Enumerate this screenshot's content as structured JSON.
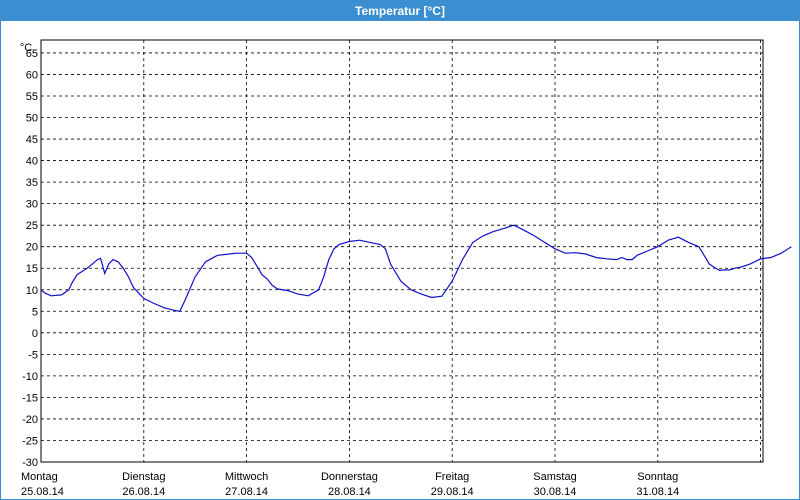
{
  "window": {
    "title": "Temperatur [°C]"
  },
  "chart_data": {
    "type": "line",
    "title": "Temperatur [°C]",
    "ylabel": "°C",
    "ylim": [
      -30,
      68
    ],
    "yticks": [
      65,
      60,
      55,
      50,
      45,
      40,
      35,
      30,
      25,
      20,
      15,
      10,
      5,
      0,
      -5,
      -10,
      -15,
      -20,
      -25,
      -30
    ],
    "grid": true,
    "days": [
      {
        "name": "Montag",
        "date": "25.08.14"
      },
      {
        "name": "Dienstag",
        "date": "26.08.14"
      },
      {
        "name": "Mittwoch",
        "date": "27.08.14"
      },
      {
        "name": "Donnerstag",
        "date": "28.08.14"
      },
      {
        "name": "Freitag",
        "date": "29.08.14"
      },
      {
        "name": "Samstag",
        "date": "30.08.14"
      },
      {
        "name": "Sonntag",
        "date": "31.08.14"
      }
    ],
    "series": [
      {
        "color": "#1010c8",
        "x": [
          0,
          0.04,
          0.1,
          0.2,
          0.27,
          0.3,
          0.35,
          0.45,
          0.5,
          0.55,
          0.58,
          0.62,
          0.66,
          0.7,
          0.75,
          0.8,
          0.85,
          0.9,
          1.0,
          1.1,
          1.2,
          1.3,
          1.35,
          1.4,
          1.5,
          1.6,
          1.7,
          1.72,
          1.8,
          1.9,
          2.0,
          2.05,
          2.1,
          2.15,
          2.2,
          2.25,
          2.3,
          2.4,
          2.5,
          2.6,
          2.7,
          2.75,
          2.8,
          2.85,
          2.9,
          3.0,
          3.1,
          3.2,
          3.3,
          3.35,
          3.4,
          3.5,
          3.6,
          3.65,
          3.7,
          3.8,
          3.9,
          4.0,
          4.1,
          4.2,
          4.3,
          4.4,
          4.5,
          4.6,
          4.7,
          4.8,
          4.9,
          5.0,
          5.1,
          5.2,
          5.3,
          5.4,
          5.5,
          5.6,
          5.65,
          5.7,
          5.75,
          5.8,
          5.9,
          6.0,
          6.1,
          6.2,
          6.3,
          6.4,
          6.45,
          6.5,
          6.55,
          6.6,
          6.65,
          6.7,
          6.75,
          6.8,
          6.9,
          7.0,
          7.1,
          7.2,
          7.3
        ],
        "values": [
          10,
          9.2,
          8.6,
          8.8,
          10.0,
          11.5,
          13.5,
          15.0,
          16.0,
          17.0,
          17.3,
          13.8,
          16.0,
          17.0,
          16.5,
          15.0,
          13.0,
          10.5,
          8.0,
          6.8,
          5.8,
          5.2,
          5.0,
          7.5,
          13.0,
          16.5,
          17.8,
          18.0,
          18.2,
          18.5,
          18.5,
          17.5,
          15.5,
          13.5,
          12.5,
          11.0,
          10.2,
          9.8,
          9.0,
          8.6,
          10.0,
          13.0,
          17.0,
          19.5,
          20.5,
          21.2,
          21.5,
          21.0,
          20.5,
          19.5,
          16.0,
          12.0,
          10.0,
          9.5,
          9.0,
          8.2,
          8.5,
          12.0,
          17.0,
          21.0,
          22.5,
          23.5,
          24.2,
          25.0,
          23.8,
          22.5,
          21.0,
          19.5,
          18.5,
          18.6,
          18.3,
          17.5,
          17.2,
          17.0,
          17.5,
          17.0,
          17.0,
          18.0,
          19.0,
          20.0,
          21.5,
          22.2,
          21.0,
          20.0,
          18.0,
          16.0,
          15.2,
          14.5,
          14.6,
          14.6,
          15.0,
          15.2,
          16.0,
          17.2,
          17.5,
          18.5,
          20.0
        ]
      }
    ]
  }
}
